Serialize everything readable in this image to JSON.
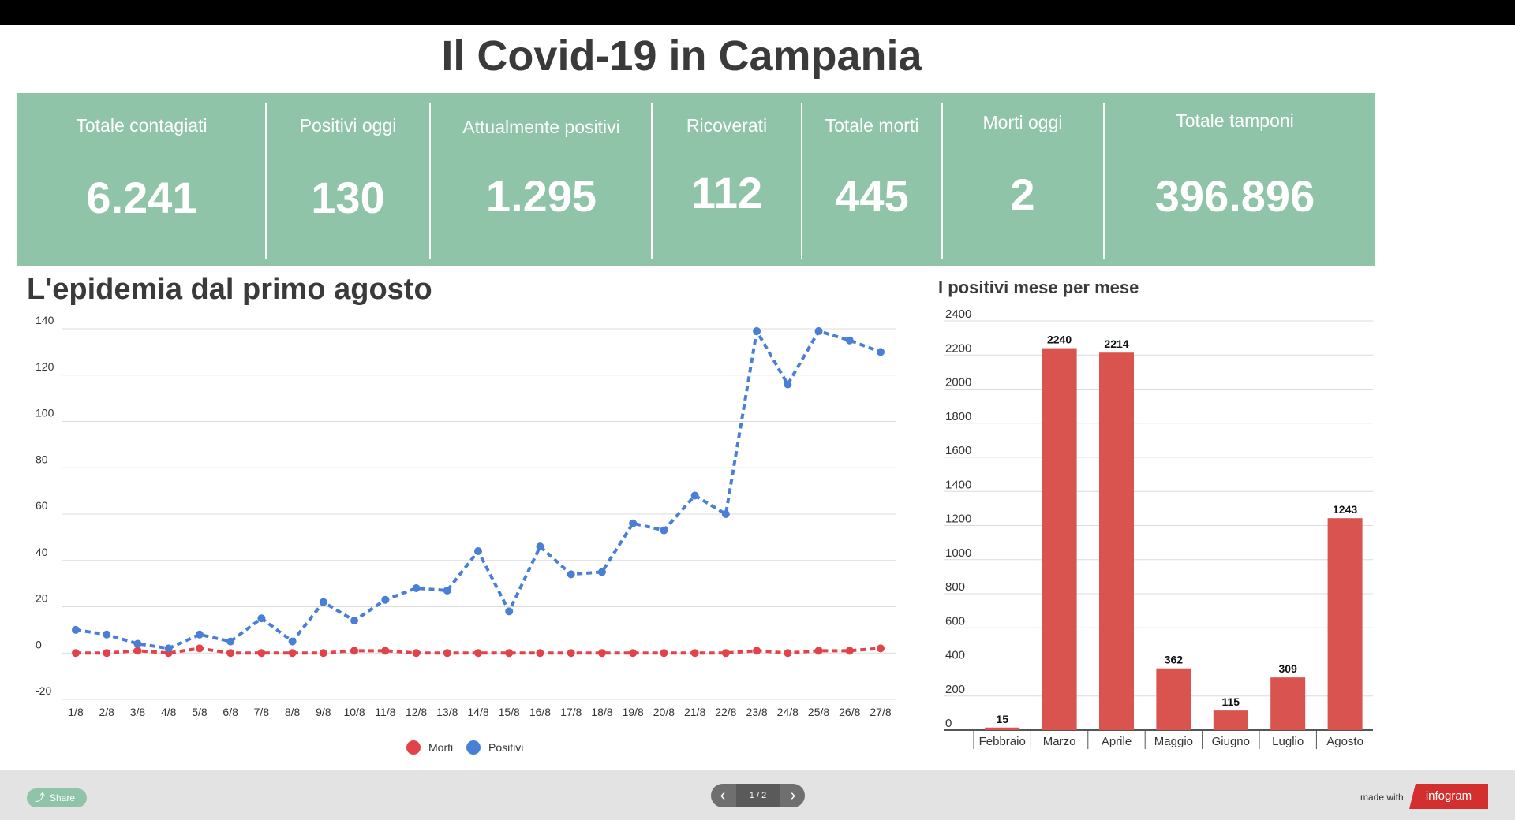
{
  "title": "Il Covid-19 in Campania",
  "colors": {
    "stats_bg": "#8fc4a8",
    "morti": "#e0444a",
    "positivi": "#4a7fd6",
    "bars": "#d9534f"
  },
  "stats": [
    {
      "label": "Totale contagiati",
      "value": "6.241"
    },
    {
      "label": "Positivi oggi",
      "value": "130"
    },
    {
      "label": "Attualmente positivi",
      "value": "1.295"
    },
    {
      "label": "Ricoverati",
      "value": "112"
    },
    {
      "label": "Totale morti",
      "value": "445"
    },
    {
      "label": "Morti oggi",
      "value": "2"
    },
    {
      "label": "Totale tamponi",
      "value": "396.896"
    }
  ],
  "chart_data": [
    {
      "type": "line",
      "title": "L'epidemia dal primo agosto",
      "x": [
        "1/8",
        "2/8",
        "3/8",
        "4/8",
        "5/8",
        "6/8",
        "7/8",
        "8/8",
        "9/8",
        "10/8",
        "11/8",
        "12/8",
        "13/8",
        "14/8",
        "15/8",
        "16/8",
        "17/8",
        "18/8",
        "19/8",
        "20/8",
        "21/8",
        "22/8",
        "23/8",
        "24/8",
        "25/8",
        "26/8",
        "27/8"
      ],
      "series": [
        {
          "name": "Morti",
          "values": [
            0,
            0,
            1,
            0,
            2,
            0,
            0,
            0,
            0,
            1,
            1,
            0,
            0,
            0,
            0,
            0,
            0,
            0,
            0,
            0,
            0,
            0,
            1,
            0,
            1,
            1,
            2
          ]
        },
        {
          "name": "Positivi",
          "values": [
            10,
            8,
            4,
            2,
            8,
            5,
            15,
            5,
            22,
            14,
            23,
            28,
            27,
            44,
            18,
            46,
            34,
            35,
            56,
            53,
            68,
            60,
            139,
            116,
            139,
            135,
            130
          ]
        }
      ],
      "ylim": [
        -20,
        140
      ],
      "yticks": [
        "140",
        "120",
        "100",
        "80",
        "60",
        "40",
        "20",
        "0",
        "-20"
      ],
      "grid": true,
      "legend": "bottom"
    },
    {
      "type": "bar",
      "title": "I positivi mese per mese",
      "categories": [
        "Febbraio",
        "Marzo",
        "Aprile",
        "Maggio",
        "Giugno",
        "Luglio",
        "Agosto"
      ],
      "values": [
        15,
        2240,
        2214,
        362,
        115,
        309,
        1243
      ],
      "ylim": [
        0,
        2400
      ],
      "yticks": [
        "2400",
        "2200",
        "2000",
        "1800",
        "1600",
        "1400",
        "1200",
        "1000",
        "800",
        "600",
        "400",
        "200",
        "0"
      ],
      "grid": true
    }
  ],
  "footer": {
    "share": "Share",
    "page": "1 / 2",
    "made_with": "made with",
    "brand": "infogram",
    "prev_icon": "chevron-left-icon",
    "next_icon": "chevron-right-icon",
    "share_icon": "share-icon"
  }
}
